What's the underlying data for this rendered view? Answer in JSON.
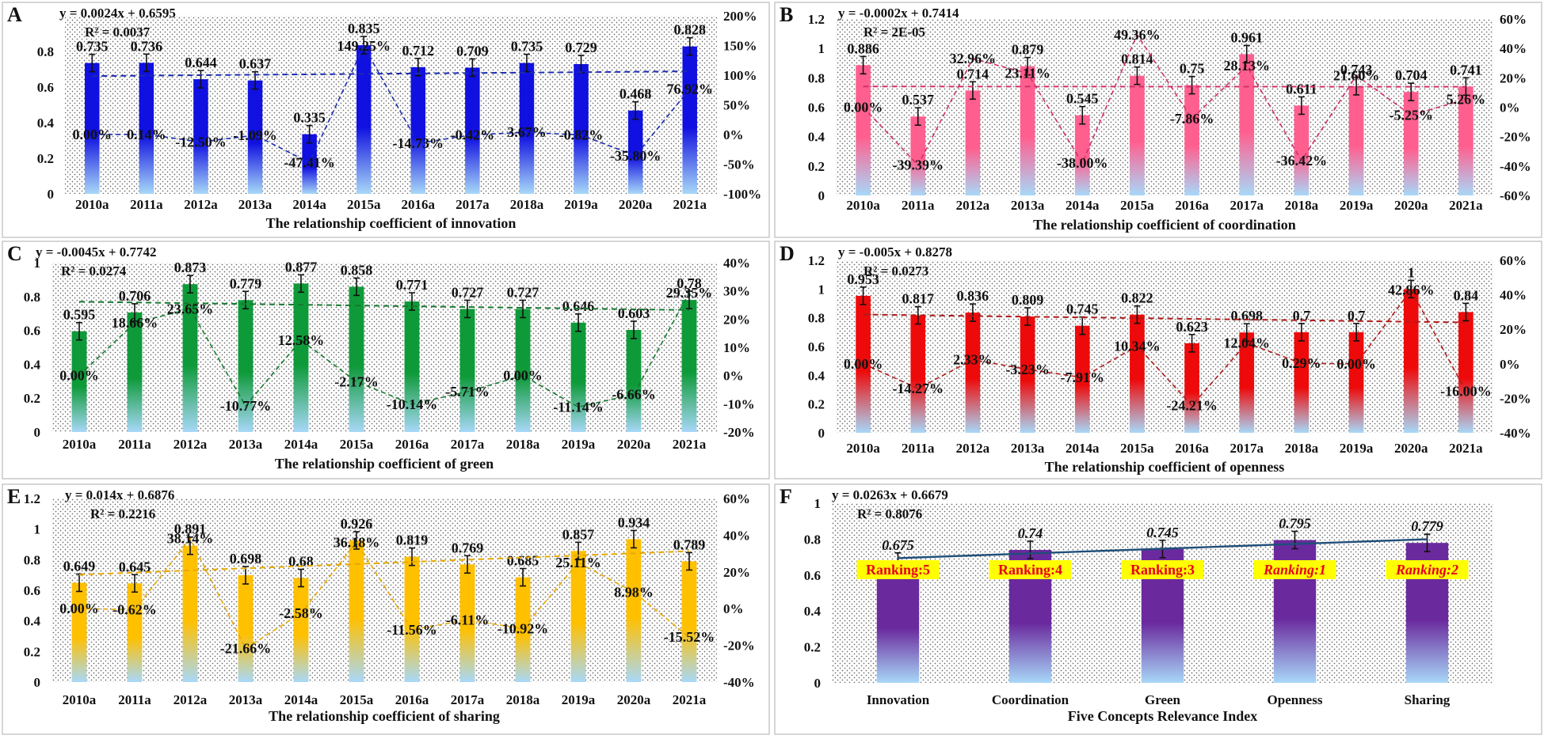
{
  "chart_data": [
    {
      "type": "bar",
      "panel_letter": "A",
      "categories": [
        "2010a",
        "2011a",
        "2012a",
        "2013a",
        "2014a",
        "2015a",
        "2016a",
        "2017a",
        "2018a",
        "2019a",
        "2020a",
        "2021a"
      ],
      "values": [
        0.735,
        0.736,
        0.644,
        0.637,
        0.335,
        0.835,
        0.712,
        0.709,
        0.735,
        0.729,
        0.468,
        0.828
      ],
      "value_labels": [
        "0.735",
        "0.736",
        "0.644",
        "0.637",
        "0.335",
        "0.835",
        "0.712",
        "0.709",
        "0.735",
        "0.729",
        "0.468",
        "0.828"
      ],
      "growth_rates": [
        0.0,
        0.14,
        -12.5,
        -1.09,
        -47.41,
        149.25,
        -14.73,
        -0.42,
        3.67,
        -0.82,
        -35.8,
        76.92
      ],
      "growth_labels": [
        "0.00%",
        "0.14%",
        "-12.50%",
        "-1.09%",
        "-47.41%",
        "149.25%",
        "-14.73%",
        "-0.42%",
        "3.67%",
        "-0.82%",
        "-35.80%",
        "76.92%"
      ],
      "trend_slope": 0.0024,
      "trend_intercept": 0.6595,
      "equation": "y = 0.0024x + 0.6595",
      "r_squared": "R² = 0.0037",
      "xlabel": "The relationship coefficient of innovation",
      "ylim": [
        0,
        1
      ],
      "y_ticks": [
        0,
        0.2,
        0.4,
        0.6,
        0.8
      ],
      "y_tick_labels": [
        "0",
        "0.2",
        "0.4",
        "0.6",
        "0.8"
      ],
      "y2lim": [
        -100,
        200
      ],
      "y2_ticks": [
        -100,
        -50,
        0,
        50,
        100,
        150,
        200
      ],
      "y2_tick_labels": [
        "-100%",
        "-50%",
        "0%",
        "50%",
        "100%",
        "150%",
        "200%"
      ],
      "color": "#1010e0",
      "line_color": "#1a2cb0"
    },
    {
      "type": "bar",
      "panel_letter": "B",
      "categories": [
        "2010a",
        "2011a",
        "2012a",
        "2013a",
        "2014a",
        "2015a",
        "2016a",
        "2017a",
        "2018a",
        "2019a",
        "2020a",
        "2021a"
      ],
      "values": [
        0.886,
        0.537,
        0.714,
        0.879,
        0.545,
        0.814,
        0.75,
        0.961,
        0.611,
        0.743,
        0.704,
        0.741
      ],
      "value_labels": [
        "0.886",
        "0.537",
        "0.714",
        "0.879",
        "0.545",
        "0.814",
        "0.75",
        "0.961",
        "0.611",
        "0.743",
        "0.704",
        "0.741"
      ],
      "growth_rates": [
        0.0,
        -39.39,
        32.96,
        23.11,
        -38.0,
        49.36,
        -7.86,
        28.13,
        -36.42,
        21.6,
        -5.25,
        5.26
      ],
      "growth_labels": [
        "0.00%",
        "-39.39%",
        "32.96%",
        "23.11%",
        "-38.00%",
        "49.36%",
        "-7.86%",
        "28.13%",
        "-36.42%",
        "21.60%",
        "-5.25%",
        "5.26%"
      ],
      "trend_slope": -0.0002,
      "trend_intercept": 0.7414,
      "equation": "y = -0.0002x + 0.7414",
      "r_squared": "R² = 2E-05",
      "xlabel": "The relationship coefficient of coordination",
      "ylim": [
        0,
        1.2
      ],
      "y_ticks": [
        0,
        0.2,
        0.4,
        0.6,
        0.8,
        1,
        1.2
      ],
      "y_tick_labels": [
        "0",
        "0.2",
        "0.4",
        "0.6",
        "0.8",
        "1",
        "1.2"
      ],
      "y2lim": [
        -60,
        60
      ],
      "y2_ticks": [
        -60,
        -40,
        -20,
        0,
        20,
        40,
        60
      ],
      "y2_tick_labels": [
        "-60%",
        "-40%",
        "-20%",
        "0%",
        "20%",
        "40%",
        "60%"
      ],
      "color": "#ff5f8f",
      "line_color": "#d0306a"
    },
    {
      "type": "bar",
      "panel_letter": "C",
      "categories": [
        "2010a",
        "2011a",
        "2012a",
        "2013a",
        "2014a",
        "2015a",
        "2016a",
        "2017a",
        "2018a",
        "2019a",
        "2020a",
        "2021a"
      ],
      "values": [
        0.595,
        0.706,
        0.873,
        0.779,
        0.877,
        0.858,
        0.771,
        0.727,
        0.727,
        0.646,
        0.603,
        0.78
      ],
      "value_labels": [
        "0.595",
        "0.706",
        "0.873",
        "0.779",
        "0.877",
        "0.858",
        "0.771",
        "0.727",
        "0.727",
        "0.646",
        "0.603",
        "0.78"
      ],
      "growth_rates": [
        0.0,
        18.66,
        23.65,
        -10.77,
        12.58,
        -2.17,
        -10.14,
        -5.71,
        0.0,
        -11.14,
        -6.66,
        29.35
      ],
      "growth_labels": [
        "0.00%",
        "18.66%",
        "23.65%",
        "-10.77%",
        "12.58%",
        "-2.17%",
        "-10.14%",
        "-5.71%",
        "0.00%",
        "-11.14%",
        "-6.66%",
        "29.35%"
      ],
      "trend_slope": -0.0045,
      "trend_intercept": 0.7742,
      "equation": "y = -0.0045x + 0.7742",
      "r_squared": "R² = 0.0274",
      "xlabel": "The relationship coefficient of green",
      "ylim": [
        0,
        1
      ],
      "y_ticks": [
        0,
        0.2,
        0.4,
        0.6,
        0.8,
        1
      ],
      "y_tick_labels": [
        "0",
        "0.2",
        "0.4",
        "0.6",
        "0.8",
        "1"
      ],
      "y2lim": [
        -20,
        40
      ],
      "y2_ticks": [
        -20,
        -10,
        0,
        10,
        20,
        30,
        40
      ],
      "y2_tick_labels": [
        "-20%",
        "-10%",
        "0%",
        "10%",
        "20%",
        "30%",
        "40%"
      ],
      "color": "#0f9a3a",
      "line_color": "#167a2e"
    },
    {
      "type": "bar",
      "panel_letter": "D",
      "categories": [
        "2010a",
        "2011a",
        "2012a",
        "2013a",
        "2014a",
        "2015a",
        "2016a",
        "2017a",
        "2018a",
        "2019a",
        "2020a",
        "2021a"
      ],
      "values": [
        0.953,
        0.817,
        0.836,
        0.809,
        0.745,
        0.822,
        0.623,
        0.698,
        0.7,
        0.7,
        1,
        0.84
      ],
      "value_labels": [
        "0.953",
        "0.817",
        "0.836",
        "0.809",
        "0.745",
        "0.822",
        "0.623",
        "0.698",
        "0.7",
        "0.7",
        "1",
        "0.84"
      ],
      "growth_rates": [
        0.0,
        -14.27,
        2.33,
        -3.23,
        -7.91,
        10.34,
        -24.21,
        12.04,
        0.29,
        0.0,
        42.86,
        -16.0
      ],
      "growth_labels": [
        "0.00%",
        "-14.27%",
        "2.33%",
        "-3.23%",
        "-7.91%",
        "10.34%",
        "-24.21%",
        "12.04%",
        "0.29%",
        "0.00%",
        "42.86%",
        "-16.00%"
      ],
      "trend_slope": -0.005,
      "trend_intercept": 0.8278,
      "equation": "y = -0.005x + 0.8278",
      "r_squared": "R² = 0.0273",
      "xlabel": "The relationship coefficient of openness",
      "ylim": [
        0,
        1.2
      ],
      "y_ticks": [
        0,
        0.2,
        0.4,
        0.6,
        0.8,
        1,
        1.2
      ],
      "y_tick_labels": [
        "0",
        "0.2",
        "0.4",
        "0.6",
        "0.8",
        "1",
        "1.2"
      ],
      "y2lim": [
        -40,
        60
      ],
      "y2_ticks": [
        -40,
        -20,
        0,
        20,
        40,
        60
      ],
      "y2_tick_labels": [
        "-40%",
        "-20%",
        "0%",
        "20%",
        "40%",
        "60%"
      ],
      "color": "#ee0a0a",
      "line_color": "#b01a1a"
    },
    {
      "type": "bar",
      "panel_letter": "E",
      "categories": [
        "2010a",
        "2011a",
        "2012a",
        "2013a",
        "2014a",
        "2015a",
        "2016a",
        "2017a",
        "2018a",
        "2019a",
        "2020a",
        "2021a"
      ],
      "values": [
        0.649,
        0.645,
        0.891,
        0.698,
        0.68,
        0.926,
        0.819,
        0.769,
        0.685,
        0.857,
        0.934,
        0.789
      ],
      "value_labels": [
        "0.649",
        "0.645",
        "0.891",
        "0.698",
        "0.68",
        "0.926",
        "0.819",
        "0.769",
        "0.685",
        "0.857",
        "0.934",
        "0.789"
      ],
      "growth_rates": [
        0.0,
        -0.62,
        38.14,
        -21.66,
        -2.58,
        36.18,
        -11.56,
        -6.11,
        -10.92,
        25.11,
        8.98,
        -15.52
      ],
      "growth_labels": [
        "0.00%",
        "-0.62%",
        "38.14%",
        "-21.66%",
        "-2.58%",
        "36.18%",
        "-11.56%",
        "-6.11%",
        "-10.92%",
        "25.11%",
        "8.98%",
        "-15.52%"
      ],
      "trend_slope": 0.014,
      "trend_intercept": 0.6876,
      "equation": "y = 0.014x + 0.6876",
      "r_squared": "R² = 0.2216",
      "xlabel": "The relationship coefficient of sharing",
      "ylim": [
        0,
        1.2
      ],
      "y_ticks": [
        0,
        0.2,
        0.4,
        0.6,
        0.8,
        1,
        1.2
      ],
      "y_tick_labels": [
        "0",
        "0.2",
        "0.4",
        "0.6",
        "0.8",
        "1",
        "1.2"
      ],
      "y2lim": [
        -40,
        60
      ],
      "y2_ticks": [
        -40,
        -20,
        0,
        20,
        40,
        60
      ],
      "y2_tick_labels": [
        "-40%",
        "-20%",
        "0%",
        "20%",
        "40%",
        "60%"
      ],
      "color": "#ffc000",
      "line_color": "#e8a800"
    },
    {
      "type": "bar",
      "panel_letter": "F",
      "categories": [
        "Innovation",
        "Coordination",
        "Green",
        "Openness",
        "Sharing"
      ],
      "values": [
        0.675,
        0.74,
        0.745,
        0.795,
        0.779
      ],
      "value_labels": [
        "0.675",
        "0.74",
        "0.745",
        "0.795",
        "0.779"
      ],
      "rankings": [
        "Ranking:5",
        "Ranking:4",
        "Ranking:3",
        "Ranking:1",
        "Ranking:2"
      ],
      "trend_slope": 0.0263,
      "trend_intercept": 0.6679,
      "equation": "y = 0.0263x + 0.6679",
      "r_squared": "R² = 0.8076",
      "xlabel": "Five Concepts Relevance Index",
      "ylim": [
        0,
        1
      ],
      "y_ticks": [
        0,
        0.2,
        0.4,
        0.6,
        0.8,
        1
      ],
      "y_tick_labels": [
        "0",
        "0.2",
        "0.4",
        "0.6",
        "0.8",
        "1"
      ],
      "color": "#6a2a9e",
      "line_color": "#1f4e79",
      "ranking_bg": "#ffff00",
      "ranking_text_color": "#e8001c"
    }
  ]
}
